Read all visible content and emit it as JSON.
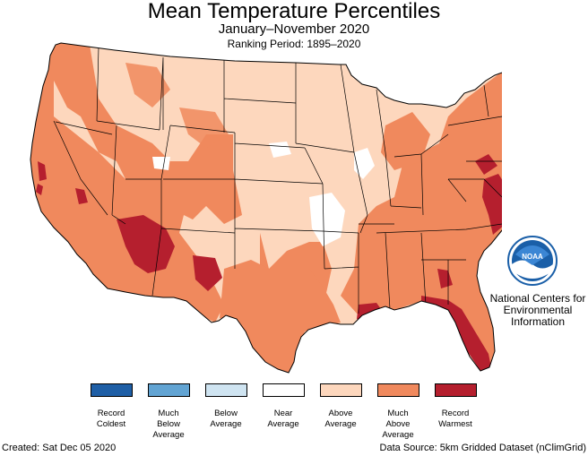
{
  "title": "Mean Temperature Percentiles",
  "subtitle": "January–November 2020",
  "ranking_period": "Ranking Period: 1895–2020",
  "agency": {
    "logo_text": "NOAA",
    "name_lines": [
      "National Centers for",
      "Environmental",
      "Information"
    ]
  },
  "legend": [
    {
      "lines": [
        "Record",
        "Coldest"
      ],
      "color": "#1f5fa6"
    },
    {
      "lines": [
        "Much",
        "Below",
        "Average"
      ],
      "color": "#62a4d3"
    },
    {
      "lines": [
        "Below",
        "Average"
      ],
      "color": "#cfe4f1"
    },
    {
      "lines": [
        "Near",
        "Average"
      ],
      "color": "#ffffff"
    },
    {
      "lines": [
        "Above",
        "Average"
      ],
      "color": "#fdd7bd"
    },
    {
      "lines": [
        "Much",
        "Above",
        "Average"
      ],
      "color": "#f0895d"
    },
    {
      "lines": [
        "Record",
        "Warmest"
      ],
      "color": "#b51f2e"
    }
  ],
  "footer": {
    "created": "Created: Sat Dec 05 2020",
    "source": "Data Source: 5km Gridded Dataset (nClimGrid)"
  }
}
